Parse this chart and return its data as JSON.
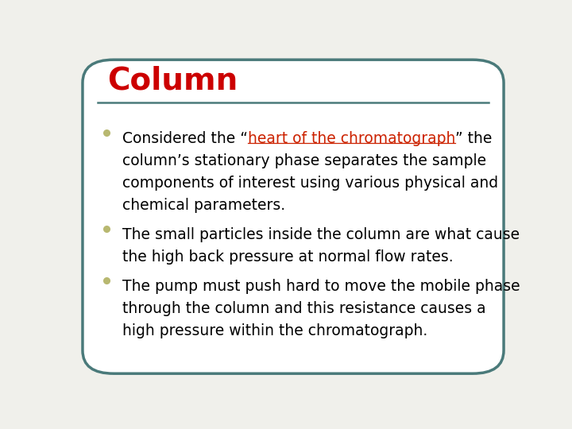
{
  "title": "Column",
  "title_color": "#CC0000",
  "title_fontsize": 28,
  "title_bold": true,
  "background_color": "#F0F0EB",
  "border_color": "#4A7A7A",
  "border_linewidth": 2.5,
  "separator_color": "#4A7A7A",
  "bullet_color": "#B8B870",
  "body_color": "#000000",
  "link_color": "#CC2200",
  "body_fontsize": 13.5,
  "bullet1_line1_prefix": "Considered the “",
  "bullet1_link": "heart of the chromatograph",
  "bullet1_line1_suffix": "” the",
  "bullet1_lines": [
    "column’s stationary phase separates the sample",
    "components of interest using various physical and",
    "chemical parameters."
  ],
  "bullet2_lines": [
    "The small particles inside the column are what cause",
    "the high back pressure at normal flow rates."
  ],
  "bullet3_lines": [
    "The pump must push hard to move the mobile phase",
    "through the column and this resistance causes a",
    "high pressure within the chromatograph."
  ]
}
